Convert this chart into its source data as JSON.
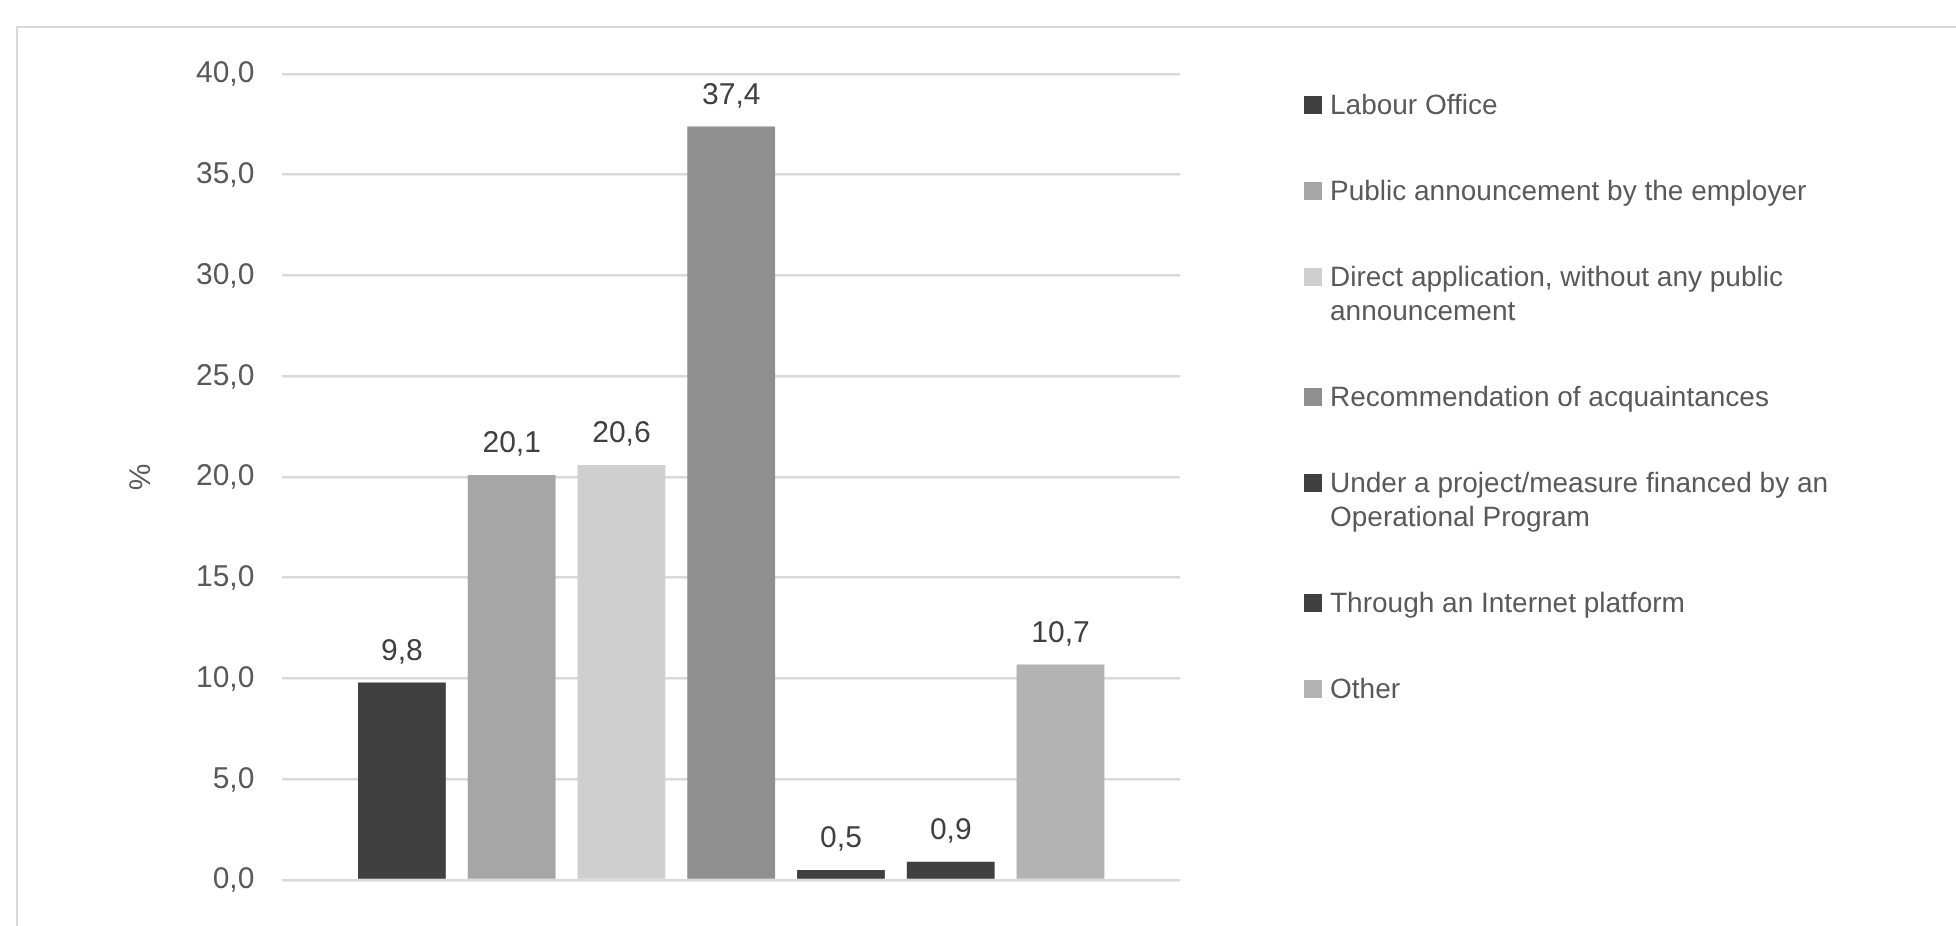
{
  "chart_data": {
    "type": "bar",
    "ylabel": "%",
    "categories": [
      null
    ],
    "series": [
      {
        "name": "Labour Office",
        "color": "#404040",
        "values": [
          9.8
        ],
        "value_labels": [
          "9,8"
        ]
      },
      {
        "name": "Public announcement by the employer",
        "color": "#a6a6a6",
        "values": [
          20.1
        ],
        "value_labels": [
          "20,1"
        ]
      },
      {
        "name": "Direct application, without any public announcement",
        "color": "#cfcfcf",
        "values": [
          20.6
        ],
        "value_labels": [
          "20,6"
        ]
      },
      {
        "name": "Recommendation of acquaintances",
        "color": "#8f8f8f",
        "values": [
          37.4
        ],
        "value_labels": [
          "37,4"
        ]
      },
      {
        "name": "Under a project/measure financed by an Operational Program",
        "color": "#404040",
        "values": [
          0.5
        ],
        "value_labels": [
          "0,5"
        ]
      },
      {
        "name": "Through an Internet platform",
        "color": "#404040",
        "values": [
          0.9
        ],
        "value_labels": [
          "0,9"
        ]
      },
      {
        "name": "Other",
        "color": "#b3b3b3",
        "values": [
          10.7
        ],
        "value_labels": [
          "10,7"
        ]
      }
    ],
    "ylim": [
      0,
      40
    ],
    "yticks": [
      {
        "value": 0,
        "label": "0,0"
      },
      {
        "value": 5,
        "label": "5,0"
      },
      {
        "value": 10,
        "label": "10,0"
      },
      {
        "value": 15,
        "label": "15,0"
      },
      {
        "value": 20,
        "label": "20,0"
      },
      {
        "value": 25,
        "label": "25,0"
      },
      {
        "value": 30,
        "label": "30,0"
      },
      {
        "value": 35,
        "label": "35,0"
      },
      {
        "value": 40,
        "label": "40,0"
      }
    ],
    "grid": "y",
    "legend": "right"
  }
}
